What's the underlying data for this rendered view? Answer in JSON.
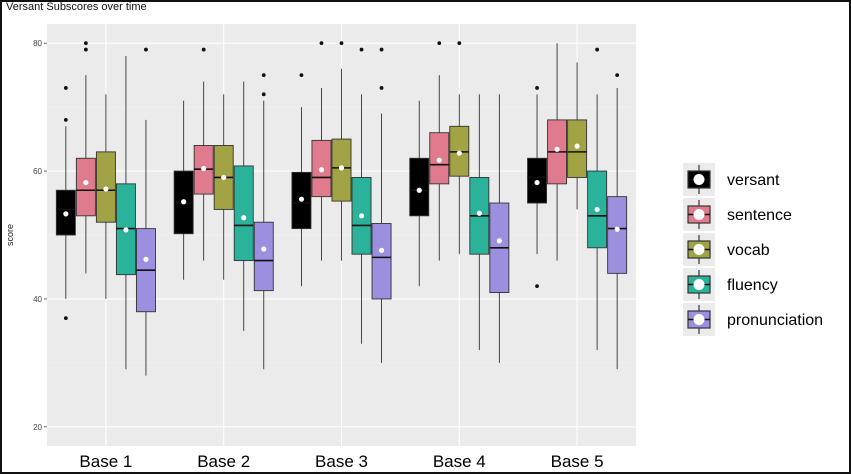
{
  "chart_data": {
    "type": "boxplot",
    "title": "Versant Subscores over time",
    "ylabel": "score",
    "xlabel": "",
    "ylim": [
      17,
      83
    ],
    "yticks": [
      20,
      40,
      60,
      80
    ],
    "categories": [
      "Base 1",
      "Base 2",
      "Base 3",
      "Base 4",
      "Base 5"
    ],
    "grid": true,
    "legend_position": "right",
    "series": [
      {
        "name": "versant",
        "color": "#000000",
        "boxes": [
          {
            "whisker_low": 40,
            "q1": 50,
            "median": 54,
            "q3": 57,
            "whisker_high": 67,
            "mean": 53.3,
            "outliers": [
              73,
              68,
              37
            ]
          },
          {
            "whisker_low": 43,
            "q1": 50.2,
            "median": 55,
            "q3": 60,
            "whisker_high": 71,
            "mean": 55.2,
            "outliers": []
          },
          {
            "whisker_low": 42,
            "q1": 51,
            "median": 55,
            "q3": 59.8,
            "whisker_high": 70,
            "mean": 55.6,
            "outliers": [
              75
            ]
          },
          {
            "whisker_low": 42,
            "q1": 53,
            "median": 57,
            "q3": 62,
            "whisker_high": 71,
            "mean": 57,
            "outliers": []
          },
          {
            "whisker_low": 47,
            "q1": 55,
            "median": 59,
            "q3": 62,
            "whisker_high": 72,
            "mean": 58.2,
            "outliers": [
              73,
              42
            ]
          }
        ]
      },
      {
        "name": "sentence",
        "color": "#e07b8d",
        "boxes": [
          {
            "whisker_low": 44,
            "q1": 53,
            "median": 57,
            "q3": 62,
            "whisker_high": 75,
            "mean": 58.2,
            "outliers": [
              80,
              79
            ]
          },
          {
            "whisker_low": 46,
            "q1": 56.4,
            "median": 60.3,
            "q3": 64,
            "whisker_high": 74,
            "mean": 60.4,
            "outliers": [
              79
            ]
          },
          {
            "whisker_low": 46,
            "q1": 56,
            "median": 59,
            "q3": 64.8,
            "whisker_high": 73,
            "mean": 60.2,
            "outliers": [
              80
            ]
          },
          {
            "whisker_low": 46,
            "q1": 58,
            "median": 61,
            "q3": 66,
            "whisker_high": 75,
            "mean": 61.7,
            "outliers": [
              80
            ]
          },
          {
            "whisker_low": 46,
            "q1": 58,
            "median": 63,
            "q3": 68,
            "whisker_high": 80,
            "mean": 63.4,
            "outliers": []
          }
        ]
      },
      {
        "name": "vocab",
        "color": "#a1a344",
        "boxes": [
          {
            "whisker_low": 40,
            "q1": 52,
            "median": 57,
            "q3": 63,
            "whisker_high": 72,
            "mean": 57.2,
            "outliers": []
          },
          {
            "whisker_low": 43,
            "q1": 54,
            "median": 59,
            "q3": 64,
            "whisker_high": 72,
            "mean": 59,
            "outliers": []
          },
          {
            "whisker_low": 46,
            "q1": 55.3,
            "median": 60.5,
            "q3": 65,
            "whisker_high": 76,
            "mean": 60.5,
            "outliers": [
              80
            ]
          },
          {
            "whisker_low": 47,
            "q1": 59.2,
            "median": 63,
            "q3": 67,
            "whisker_high": 72,
            "mean": 62.8,
            "outliers": [
              80
            ]
          },
          {
            "whisker_low": 54,
            "q1": 59,
            "median": 63,
            "q3": 68,
            "whisker_high": 77,
            "mean": 63.9,
            "outliers": []
          }
        ]
      },
      {
        "name": "fluency",
        "color": "#2ab39a",
        "boxes": [
          {
            "whisker_low": 29,
            "q1": 43.8,
            "median": 51,
            "q3": 58,
            "whisker_high": 78,
            "mean": 50.8,
            "outliers": []
          },
          {
            "whisker_low": 35,
            "q1": 46,
            "median": 51.5,
            "q3": 60.8,
            "whisker_high": 74,
            "mean": 52.7,
            "outliers": []
          },
          {
            "whisker_low": 33,
            "q1": 47,
            "median": 51.5,
            "q3": 59,
            "whisker_high": 72,
            "mean": 53,
            "outliers": [
              79
            ]
          },
          {
            "whisker_low": 32,
            "q1": 47,
            "median": 53,
            "q3": 59,
            "whisker_high": 72,
            "mean": 53.4,
            "outliers": []
          },
          {
            "whisker_low": 32,
            "q1": 48,
            "median": 53,
            "q3": 60,
            "whisker_high": 72,
            "mean": 54,
            "outliers": [
              79
            ]
          }
        ]
      },
      {
        "name": "pronunciation",
        "color": "#9c8fe0",
        "boxes": [
          {
            "whisker_low": 28,
            "q1": 38,
            "median": 44.5,
            "q3": 51,
            "whisker_high": 68,
            "mean": 46.2,
            "outliers": [
              79
            ]
          },
          {
            "whisker_low": 29,
            "q1": 41.3,
            "median": 46,
            "q3": 52,
            "whisker_high": 71,
            "mean": 47.8,
            "outliers": [
              75,
              72
            ]
          },
          {
            "whisker_low": 30,
            "q1": 40,
            "median": 46.5,
            "q3": 51.8,
            "whisker_high": 69,
            "mean": 47.6,
            "outliers": [
              79,
              73
            ]
          },
          {
            "whisker_low": 30,
            "q1": 41,
            "median": 48,
            "q3": 55,
            "whisker_high": 72,
            "mean": 49.1,
            "outliers": []
          },
          {
            "whisker_low": 29,
            "q1": 44,
            "median": 51,
            "q3": 56,
            "whisker_high": 73,
            "mean": 50.9,
            "outliers": [
              75
            ]
          }
        ]
      }
    ]
  }
}
